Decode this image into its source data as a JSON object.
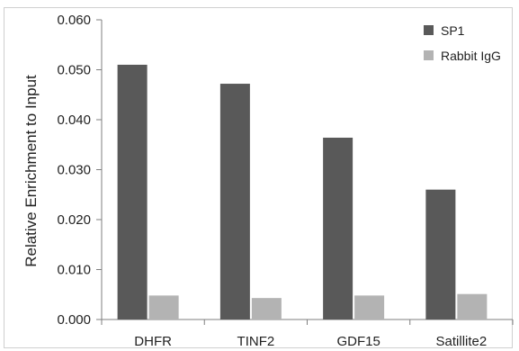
{
  "chart_data": {
    "type": "bar",
    "title": "",
    "xlabel": "",
    "ylabel": "Relative Enrichment to Input",
    "categories": [
      "DHFR",
      "TINF2",
      "GDF15",
      "Satillite2"
    ],
    "series": [
      {
        "name": "SP1",
        "values": [
          0.051,
          0.0472,
          0.0364,
          0.026
        ],
        "color": "#595959"
      },
      {
        "name": "Rabbit IgG",
        "values": [
          0.0048,
          0.0043,
          0.0048,
          0.0051
        ],
        "color": "#b3b3b3"
      }
    ],
    "ylim": [
      0,
      0.06
    ],
    "yticks": [
      "0.000",
      "0.010",
      "0.020",
      "0.030",
      "0.040",
      "0.050",
      "0.060"
    ],
    "grid": false,
    "legend_position": "top-right"
  },
  "colors": {
    "axis": "#7f7f7f",
    "frame": "#cfcfcf",
    "background": "#ffffff"
  }
}
